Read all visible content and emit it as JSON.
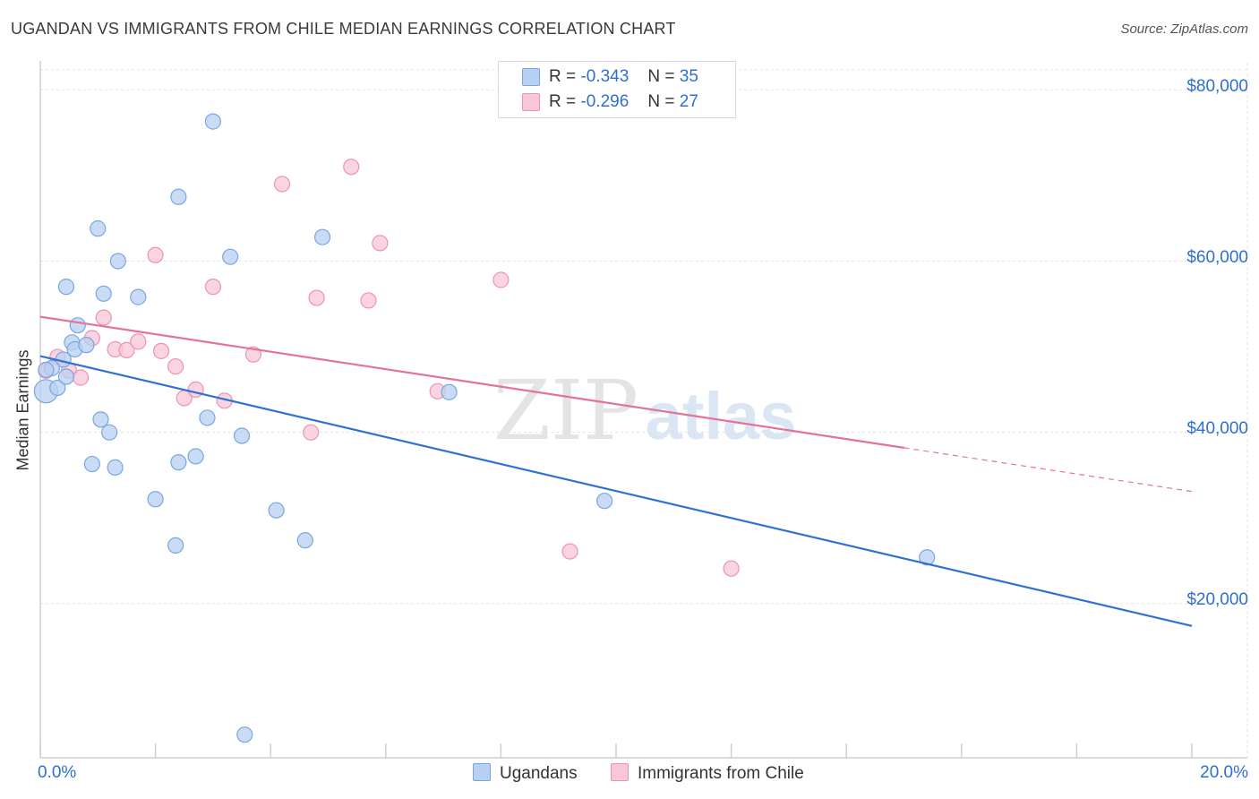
{
  "title": "UGANDAN VS IMMIGRANTS FROM CHILE MEDIAN EARNINGS CORRELATION CHART",
  "source": "Source: ZipAtlas.com",
  "legend": {
    "ugandans": {
      "r_label": "R =",
      "r_value": "-0.343",
      "n_label": "N =",
      "n_value": "35"
    },
    "chile": {
      "r_label": "R =",
      "r_value": "-0.296",
      "n_label": "N =",
      "n_value": "27"
    }
  },
  "bottom_legend": {
    "ugandans": "Ugandans",
    "chile": "Immigrants from Chile"
  },
  "x_axis": {
    "min_label": "0.0%",
    "max_label": "20.0%"
  },
  "y_axis": {
    "label": "Median Earnings",
    "ticks": [
      "$80,000",
      "$60,000",
      "$40,000",
      "$20,000"
    ]
  },
  "colors": {
    "blue_fill": "#b8d0f2",
    "blue_stroke": "#7aa6e0",
    "blue_line": "#2f72d0",
    "pink_fill": "#f8c6d6",
    "pink_stroke": "#eb94b1",
    "pink_line": "#e4729a",
    "accent_text": "#2f6fd0"
  },
  "chart_data": {
    "type": "scatter",
    "title": "UGANDAN VS IMMIGRANTS FROM CHILE MEDIAN EARNINGS CORRELATION CHART",
    "xlabel": "",
    "ylabel": "Median Earnings",
    "xlim": [
      0,
      20
    ],
    "ylim": [
      2000,
      84000
    ],
    "y_ticks": [
      20000,
      40000,
      60000,
      80000
    ],
    "series": [
      {
        "name": "Ugandans",
        "r": -0.343,
        "n": 35,
        "points": [
          [
            0.1,
            44800
          ],
          [
            0.3,
            45200
          ],
          [
            0.4,
            48500
          ],
          [
            0.2,
            47500
          ],
          [
            0.45,
            46500
          ],
          [
            0.55,
            50500
          ],
          [
            0.65,
            52500
          ],
          [
            0.6,
            49700
          ],
          [
            0.8,
            50200
          ],
          [
            0.45,
            57000
          ],
          [
            1.1,
            56200
          ],
          [
            1.7,
            55800
          ],
          [
            1.0,
            63800
          ],
          [
            1.35,
            60000
          ],
          [
            2.4,
            67500
          ],
          [
            3.0,
            76300
          ],
          [
            3.3,
            60500
          ],
          [
            4.9,
            62800
          ],
          [
            1.05,
            41500
          ],
          [
            1.2,
            40000
          ],
          [
            0.9,
            36300
          ],
          [
            1.3,
            35900
          ],
          [
            2.4,
            36500
          ],
          [
            2.7,
            37200
          ],
          [
            2.9,
            41700
          ],
          [
            3.5,
            39600
          ],
          [
            2.0,
            32200
          ],
          [
            4.1,
            30900
          ],
          [
            2.35,
            26800
          ],
          [
            4.6,
            27400
          ],
          [
            7.1,
            44700
          ],
          [
            9.8,
            32000
          ],
          [
            15.4,
            25400
          ],
          [
            3.55,
            4700
          ],
          [
            0.1,
            47300
          ]
        ]
      },
      {
        "name": "Immigrants from Chile",
        "r": -0.296,
        "n": 27,
        "points": [
          [
            0.1,
            47200
          ],
          [
            0.3,
            48800
          ],
          [
            0.5,
            47200
          ],
          [
            0.7,
            46400
          ],
          [
            0.9,
            51000
          ],
          [
            1.1,
            53400
          ],
          [
            1.3,
            49700
          ],
          [
            1.5,
            49600
          ],
          [
            1.7,
            50600
          ],
          [
            2.1,
            49500
          ],
          [
            2.35,
            47700
          ],
          [
            2.5,
            44000
          ],
          [
            2.7,
            45000
          ],
          [
            3.0,
            57000
          ],
          [
            3.2,
            43700
          ],
          [
            3.7,
            49100
          ],
          [
            2.0,
            60700
          ],
          [
            4.2,
            69000
          ],
          [
            4.8,
            55700
          ],
          [
            5.4,
            71000
          ],
          [
            5.7,
            55400
          ],
          [
            5.9,
            62100
          ],
          [
            4.7,
            40000
          ],
          [
            6.9,
            44800
          ],
          [
            8.0,
            57800
          ],
          [
            9.2,
            26100
          ],
          [
            12.0,
            24100
          ]
        ]
      }
    ],
    "trend_lines": [
      {
        "series": "Ugandans",
        "x0": 0,
        "y0": 48900,
        "x1": 20,
        "y1": 17400,
        "solid_to": 20
      },
      {
        "series": "Immigrants from Chile",
        "x0": 0,
        "y0": 53500,
        "x1": 20,
        "y1": 33100,
        "solid_to": 15
      }
    ],
    "watermark": "ZIPatlas",
    "grid": true,
    "legend_position": "top-center"
  }
}
